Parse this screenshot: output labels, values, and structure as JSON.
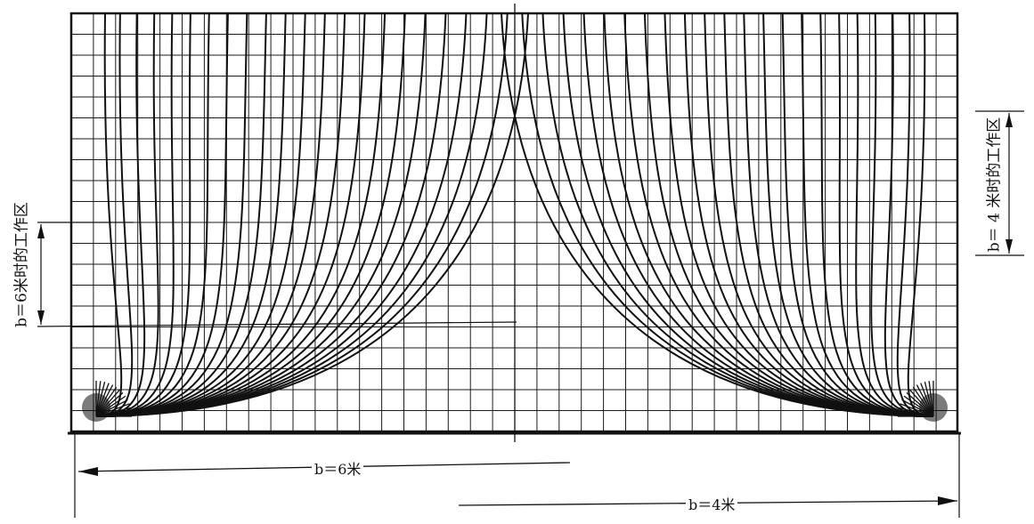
{
  "diagram": {
    "left_zone_label": "b＝6米时的工作区",
    "right_zone_label": "b＝ 4 米时的工作区",
    "dim_left_label": "b＝6米",
    "dim_right_label": "b＝4米",
    "line_color": "#111111",
    "grid_color": "#1a1a1a"
  }
}
